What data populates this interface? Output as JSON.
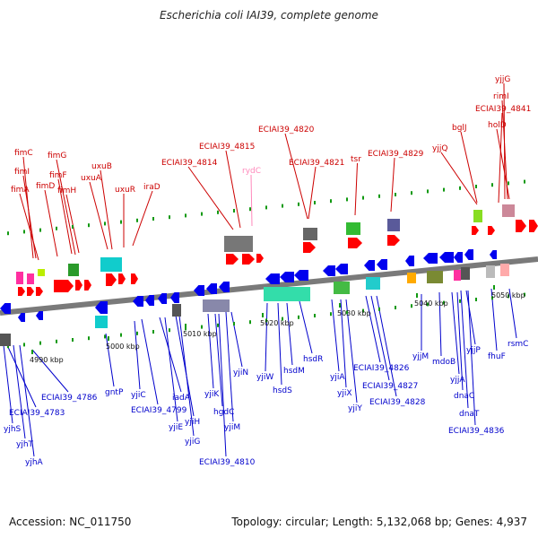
{
  "title": "Escherichia coli IAI39, complete genome",
  "accession": "Accession: NC_011750",
  "summary": "Topology: circular; Length: 5,132,068 bp; Genes: 4,937",
  "colors": {
    "forward_label": "#cc0000",
    "reverse_label": "#0000cc",
    "rna_label": "#ff88bb",
    "backbone": "#7a7a7a",
    "forward_gene": "#ff0000",
    "reverse_gene": "#0000ee",
    "tick_dot": "#119911"
  },
  "ticks": [
    "4990 kbp",
    "5000 kbp",
    "5010 kbp",
    "5020 kbp",
    "5030 kbp",
    "5040 kbp",
    "5050 kbp"
  ],
  "forward_labels": [
    "fimC",
    "fimI",
    "fimA",
    "fimD",
    "fimG",
    "fimF",
    "fimH",
    "uxuB",
    "uxuA",
    "uxuR",
    "iraD",
    "ECIAI39_4814",
    "ECIAI39_4815",
    "rydC",
    "ECIAI39_4820",
    "ECIAI39_4821",
    "tsr",
    "ECIAI39_4829",
    "yjjQ",
    "bglJ",
    "ECIAI39_4841",
    "yjjG",
    "rimI",
    "holD"
  ],
  "reverse_labels": [
    "yjhS",
    "ECIAI39_4783",
    "yjhT",
    "yjhA",
    "ECIAI39_4786",
    "gntP",
    "yjiC",
    "ECIAI39_4799",
    "iadA",
    "yjiE",
    "yjiH",
    "yjiG",
    "yjiK",
    "hgdC",
    "ECIAI39_4810",
    "yjiM",
    "yjiN",
    "yjiW",
    "hsdS",
    "hsdM",
    "hsdR",
    "yjiA",
    "yjiX",
    "yjiY",
    "ECIAI39_4826",
    "ECIAI39_4827",
    "ECIAI39_4828",
    "yjjM",
    "mdoB",
    "yjjA",
    "dnaC",
    "dnaT",
    "yjjP",
    "ECIAI39_4836",
    "fhuF",
    "rsmC"
  ]
}
